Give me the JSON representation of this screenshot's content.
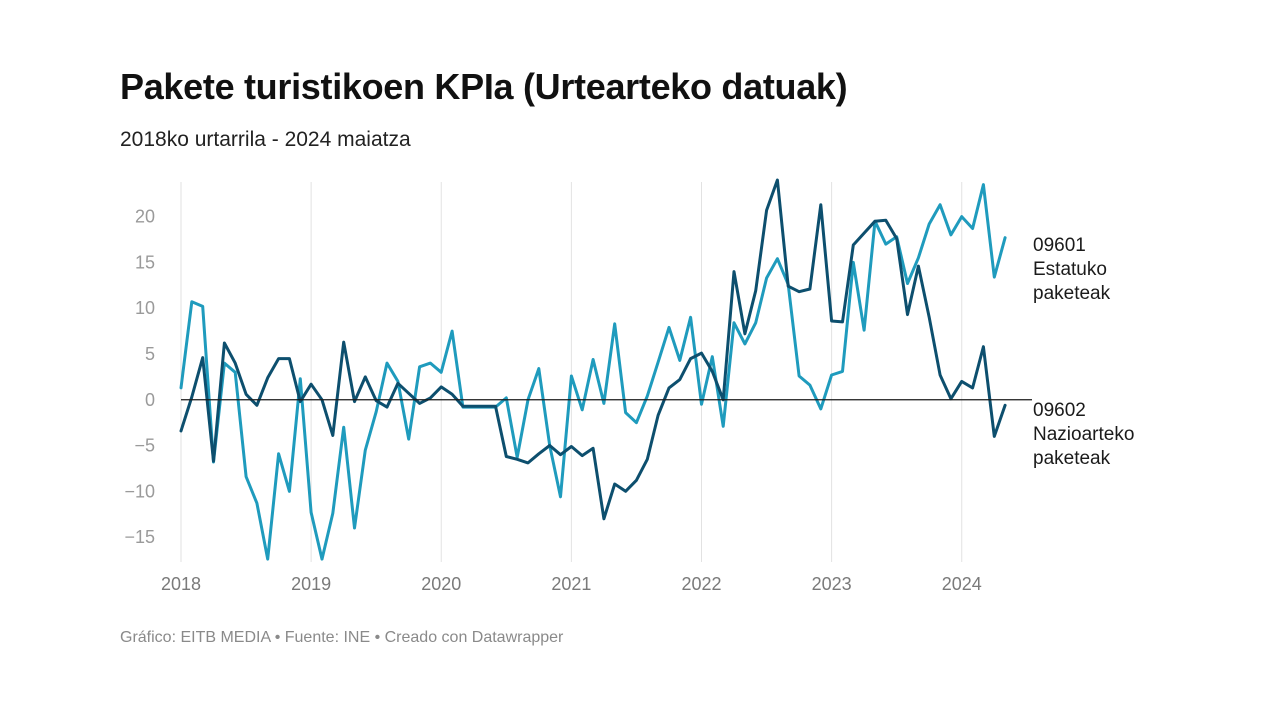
{
  "title": "Pakete turistikoen KPIa (Urtearteko datuak)",
  "subtitle": "2018ko urtarrila - 2024 maiatza",
  "footer": "Gráfico: EITB MEDIA • Fuente: INE • Creado con Datawrapper",
  "chart_data": {
    "type": "line",
    "title": "Pakete turistikoen KPIa (Urtearteko datuak)",
    "subtitle": "2018ko urtarrila - 2024 maiatza",
    "xlabel": "",
    "ylabel": "",
    "xlim": [
      2018,
      2024.417
    ],
    "ylim": [
      -17.5,
      24
    ],
    "yticks": [
      20,
      15,
      10,
      5,
      0,
      -5,
      -10,
      -15
    ],
    "ytick_labels": [
      "20",
      "15",
      "10",
      "5",
      "0",
      "−5",
      "−10",
      "−15"
    ],
    "xticks": [
      2018,
      2019,
      2020,
      2021,
      2022,
      2023,
      2024
    ],
    "xtick_labels": [
      "2018",
      "2019",
      "2020",
      "2021",
      "2022",
      "2023",
      "2024"
    ],
    "x_start": 2018,
    "x_step_months": 1,
    "grid": "vertical",
    "zero_line": true,
    "series": [
      {
        "name": "09601 Estatuko paketeak",
        "label_lines": [
          "09601",
          "Estatuko",
          "paketeak"
        ],
        "color": "#1f9bbd",
        "values": [
          1.3,
          10.7,
          10.2,
          -6.8,
          4.0,
          3.0,
          -8.4,
          -11.3,
          -17.4,
          -5.9,
          -10.0,
          2.3,
          -12.3,
          -17.4,
          -12.4,
          -3.0,
          -14.0,
          -5.5,
          -1.3,
          4.0,
          2.0,
          -4.3,
          3.6,
          4.0,
          3.0,
          7.5,
          -0.8,
          -0.8,
          -0.8,
          -0.8,
          0.2,
          -6.3,
          0.0,
          3.4,
          -5.0,
          -10.6,
          2.6,
          -1.1,
          4.4,
          -0.4,
          8.3,
          -1.4,
          -2.5,
          0.4,
          4.1,
          7.9,
          4.3,
          9.0,
          -0.5,
          4.7,
          -2.9,
          8.4,
          6.1,
          8.4,
          13.3,
          15.4,
          12.6,
          2.6,
          1.6,
          -1.0,
          2.7,
          3.1,
          15.0,
          7.6,
          19.5,
          17.0,
          17.8,
          12.7,
          15.5,
          19.2,
          21.3,
          18.0,
          20.0,
          18.7,
          23.5,
          13.4,
          17.7
        ]
      },
      {
        "name": "09602 Nazioarteko paketeak",
        "label_lines": [
          "09602",
          "Nazioarteko",
          "paketeak"
        ],
        "color": "#0d4f6e",
        "values": [
          -3.4,
          0.3,
          4.6,
          -6.7,
          6.2,
          4.0,
          0.6,
          -0.6,
          2.4,
          4.5,
          4.5,
          -0.2,
          1.7,
          0.0,
          -3.9,
          6.3,
          -0.2,
          2.5,
          -0.1,
          -0.8,
          1.8,
          0.7,
          -0.4,
          0.2,
          1.4,
          0.6,
          -0.7,
          -0.7,
          -0.7,
          -0.7,
          -6.2,
          -6.5,
          -6.9,
          -5.9,
          -5.0,
          -6.0,
          -5.1,
          -6.1,
          -5.3,
          -13.0,
          -9.2,
          -10.0,
          -8.8,
          -6.5,
          -1.7,
          1.3,
          2.2,
          4.5,
          5.1,
          3.1,
          0.0,
          14.0,
          7.2,
          11.9,
          20.7,
          24.0,
          12.4,
          11.8,
          12.1,
          21.3,
          8.6,
          8.5,
          16.9,
          18.2,
          19.5,
          19.6,
          17.6,
          9.3,
          14.6,
          9.0,
          2.7,
          0.1,
          2.0,
          1.3,
          5.8,
          -4.0,
          -0.6
        ]
      }
    ]
  }
}
